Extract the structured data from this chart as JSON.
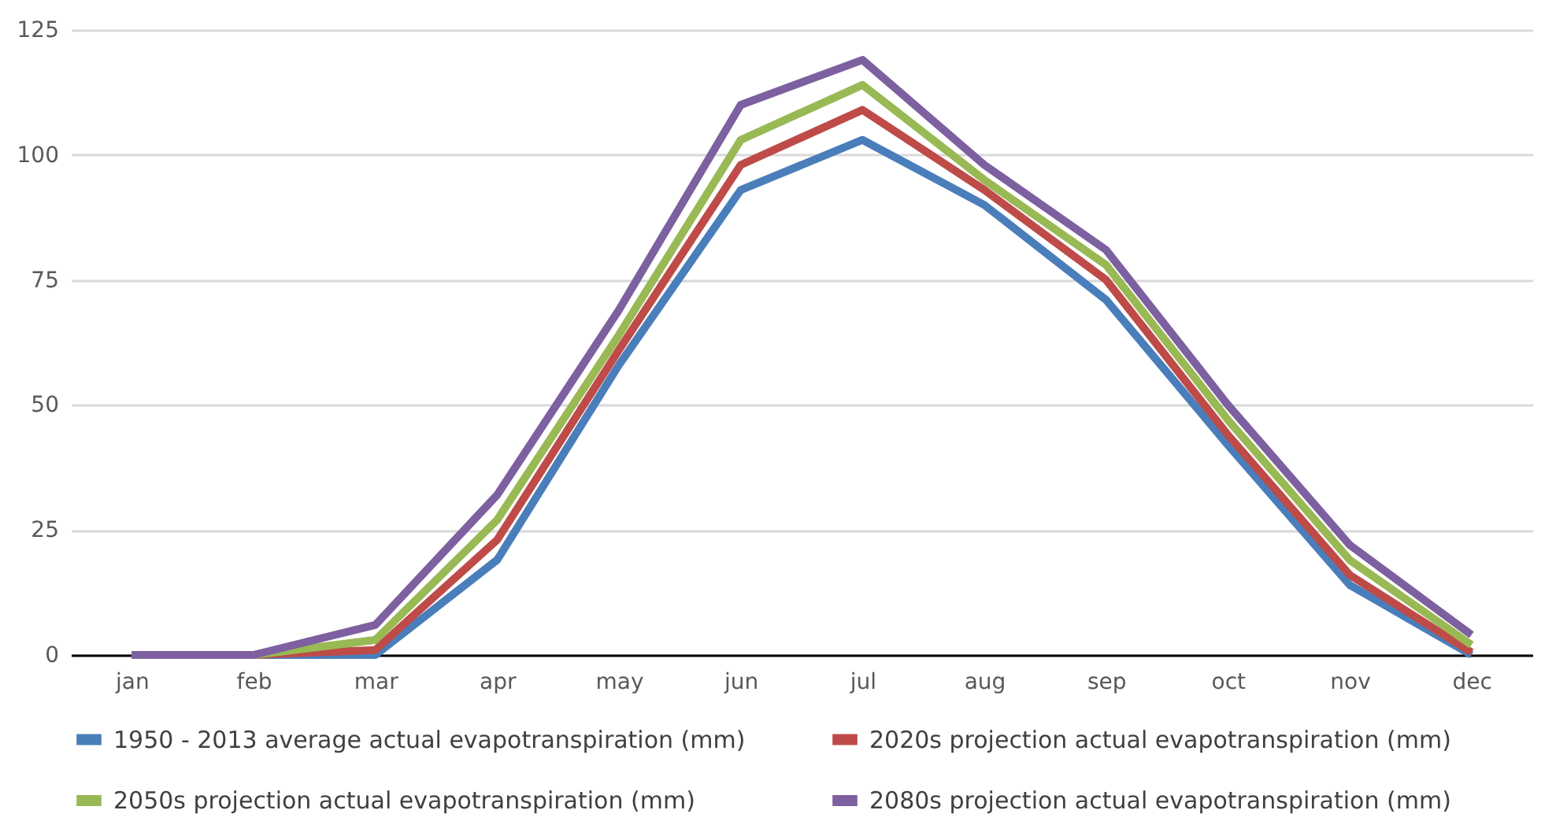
{
  "chart_data": {
    "type": "line",
    "categories": [
      "jan",
      "feb",
      "mar",
      "apr",
      "may",
      "jun",
      "jul",
      "aug",
      "sep",
      "oct",
      "nov",
      "dec"
    ],
    "series": [
      {
        "name": "1950 - 2013 average actual evapotranspiration (mm)",
        "color": "#4a7ebb",
        "values": [
          0,
          0,
          0,
          19,
          58,
          93,
          103,
          90,
          71,
          42,
          14,
          0
        ]
      },
      {
        "name": "2020s projection actual evapotranspiration (mm)",
        "color": "#be4b48",
        "values": [
          0,
          0,
          1,
          23,
          61,
          98,
          109,
          93,
          75,
          44,
          16,
          0.5
        ]
      },
      {
        "name": "2050s projection actual evapotranspiration (mm)",
        "color": "#98b954",
        "values": [
          0,
          0,
          3,
          27,
          64,
          103,
          114,
          95,
          78,
          47,
          19,
          2
        ]
      },
      {
        "name": "2080s projection actual evapotranspiration (mm)",
        "color": "#7d60a0",
        "values": [
          0,
          0,
          6,
          32,
          69,
          110,
          119,
          98,
          81,
          50,
          22,
          4
        ]
      }
    ],
    "ylim": [
      0,
      125
    ],
    "yticks": [
      0,
      25,
      50,
      75,
      100,
      125
    ],
    "grid": "y",
    "legend": "bottom",
    "marker": "none",
    "line_style": "solid"
  }
}
